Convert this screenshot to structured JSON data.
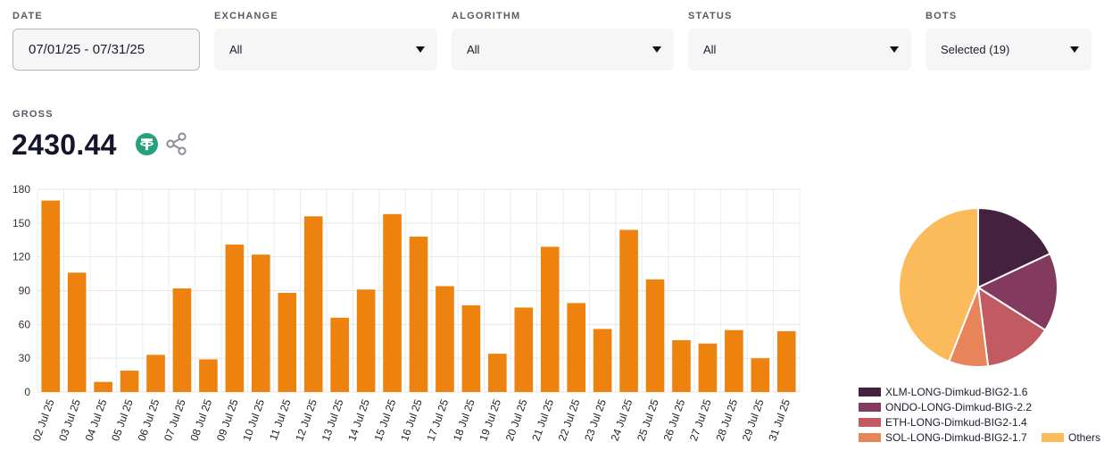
{
  "filters": {
    "date": {
      "label": "DATE",
      "value": "07/01/25 - 07/31/25"
    },
    "exchange": {
      "label": "EXCHANGE",
      "value": "All"
    },
    "algorithm": {
      "label": "ALGORITHM",
      "value": "All"
    },
    "status": {
      "label": "STATUS",
      "value": "All"
    },
    "bots": {
      "label": "BOTS",
      "value": "Selected (19)"
    }
  },
  "summary": {
    "label": "GROSS",
    "value": "2430.44",
    "currency_icon": "tether-icon",
    "currency_color": "#26a17b",
    "share_icon": "share-icon"
  },
  "chart_data": [
    {
      "type": "bar",
      "bar_color": "#ee820e",
      "grid": true,
      "ylim": [
        0,
        180
      ],
      "yticks": [
        "0",
        "30",
        "60",
        "90",
        "120",
        "150",
        "180"
      ],
      "categories": [
        "02 Jul 25",
        "03 Jul 25",
        "04 Jul 25",
        "05 Jul 25",
        "06 Jul 25",
        "07 Jul 25",
        "08 Jul 25",
        "09 Jul 25",
        "10 Jul 25",
        "11 Jul 25",
        "12 Jul 25",
        "13 Jul 25",
        "14 Jul 25",
        "15 Jul 25",
        "16 Jul 25",
        "17 Jul 25",
        "18 Jul 25",
        "19 Jul 25",
        "20 Jul 25",
        "21 Jul 25",
        "22 Jul 25",
        "23 Jul 25",
        "24 Jul 25",
        "25 Jul 25",
        "26 Jul 25",
        "27 Jul 25",
        "28 Jul 25",
        "29 Jul 25",
        "31 Jul 25"
      ],
      "values": [
        170,
        106,
        9,
        19,
        33,
        92,
        29,
        131,
        122,
        88,
        156,
        66,
        91,
        158,
        138,
        94,
        77,
        34,
        75,
        129,
        79,
        56,
        144,
        100,
        46,
        43,
        55,
        30,
        54
      ]
    },
    {
      "type": "pie",
      "slices": [
        {
          "label": "XLM-LONG-Dimkud-BIG2-1.6",
          "value": 18,
          "color": "#44223f"
        },
        {
          "label": "ONDO-LONG-Dimkud-BIG-2.2",
          "value": 16,
          "color": "#843a5e"
        },
        {
          "label": "ETH-LONG-Dimkud-BIG2-1.4",
          "value": 14,
          "color": "#c15a61"
        },
        {
          "label": "SOL-LONG-Dimkud-BIG2-1.7",
          "value": 8,
          "color": "#e8845a"
        },
        {
          "label": "Others",
          "value": 44,
          "color": "#fbbb5b"
        }
      ],
      "legend": "bottom"
    }
  ]
}
